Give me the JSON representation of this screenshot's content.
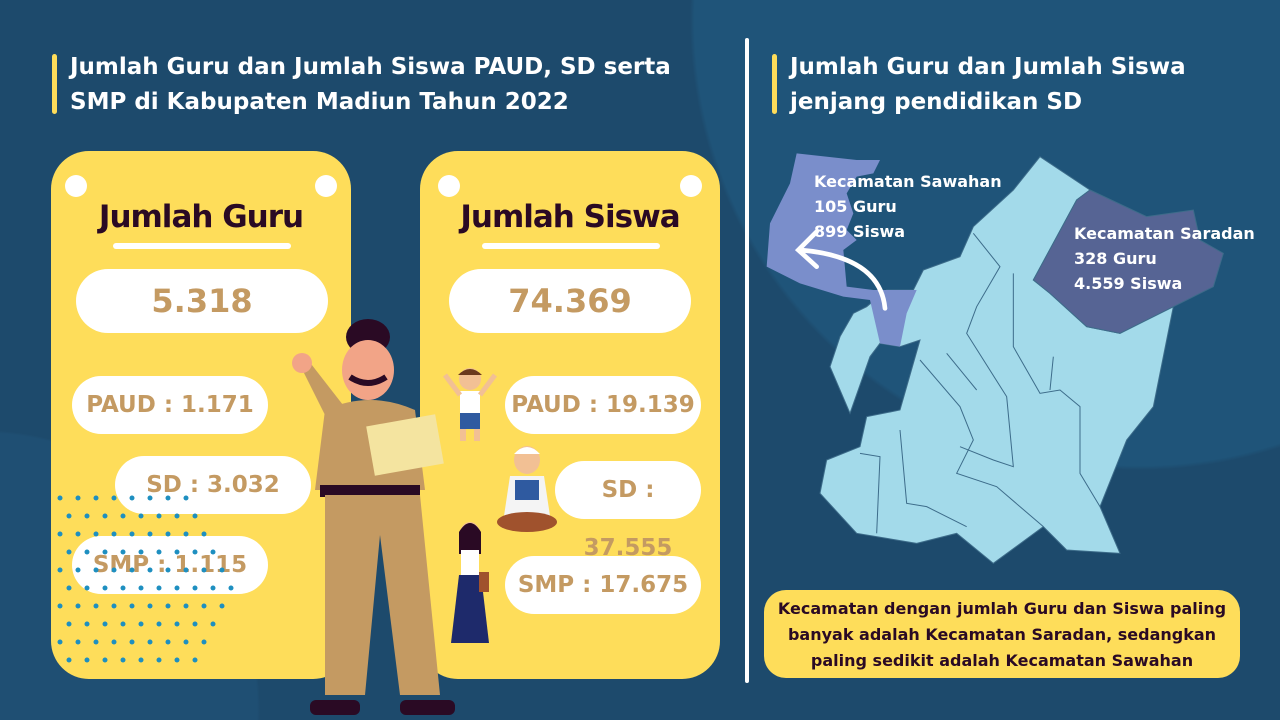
{
  "left": {
    "title_line1": "Jumlah Guru dan Jumlah Siswa PAUD, SD serta",
    "title_line2": "SMP di Kabupaten Madiun Tahun 2022",
    "guru_card": {
      "title": "Jumlah Guru",
      "total": "5.318",
      "paud": "PAUD : 1.171",
      "sd": "SD : 3.032",
      "smp": "SMP : 1.115"
    },
    "siswa_card": {
      "title": "Jumlah Siswa",
      "total": "74.369",
      "paud": "PAUD : 19.139",
      "sd": "SD : 37.555",
      "smp": "SMP : 17.675"
    }
  },
  "right": {
    "title_line1": "Jumlah Guru dan Jumlah Siswa",
    "title_line2": "jenjang pendidikan SD",
    "sawahan": {
      "name": "Kecamatan Sawahan",
      "guru": "105 Guru",
      "siswa": "899 Siswa"
    },
    "saradan": {
      "name": "Kecamatan Saradan",
      "guru": "328 Guru",
      "siswa": "4.559 Siswa"
    },
    "note_line1": "Kecamatan dengan jumlah Guru dan Siswa paling",
    "note_line2": "banyak adalah Kecamatan Saradan, sedangkan",
    "note_line3": "paling sedikit adalah Kecamatan Sawahan"
  },
  "colors": {
    "background": "#1d4a6c",
    "card": "#fedd5a",
    "value_text": "#c49a62",
    "map": "#a3daea",
    "sawahan": "#7a8ecb",
    "saradan": "#566494"
  }
}
